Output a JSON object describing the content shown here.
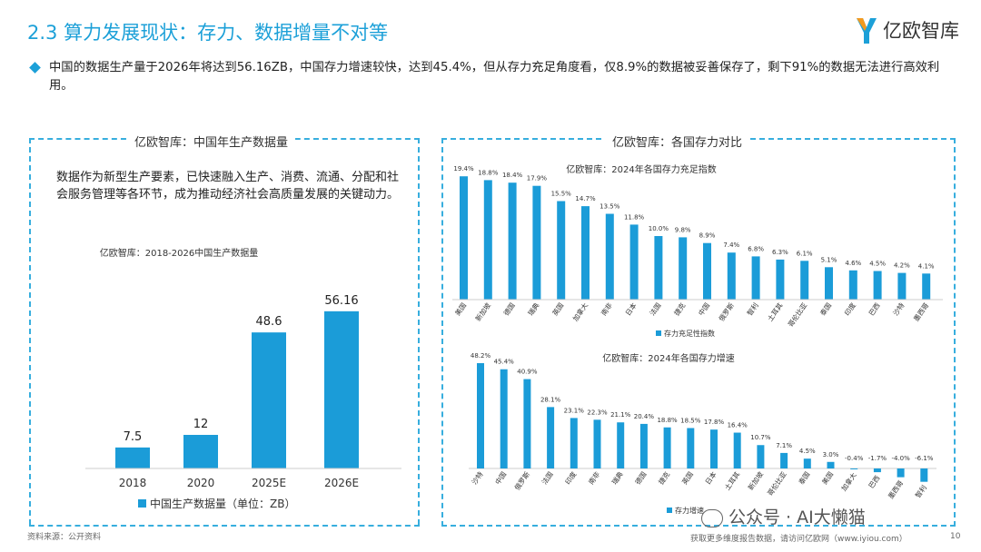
{
  "header": {
    "title": "2.3 算力发展现状：存力、数据增量不对等",
    "logo_text": "亿欧智库"
  },
  "summary": "中国的数据生产量于2026年将达到56.16ZB，中国存力增速较快，达到45.4%，但从存力充足角度看，仅8.9%的数据被妥善保存了，剩下91%的数据无法进行高效利用。",
  "left_panel": {
    "title": "亿欧智库：中国年生产数据量",
    "description": "数据作为新型生产要素，已快速融入生产、消费、流通、分配和社会服务管理等各环节，成为推动经济社会高质量发展的关键动力。"
  },
  "right_panel": {
    "title": "亿欧智库：各国存力对比"
  },
  "colors": {
    "bar": "#1b9cd8",
    "accent": "#1ca0d8",
    "dash": "#37aede"
  },
  "chart_data": [
    {
      "type": "bar",
      "title": "亿欧智库：2018-2026中国生产数据量",
      "categories": [
        "2018",
        "2020",
        "2025E",
        "2026E"
      ],
      "values": [
        7.5,
        12,
        48.6,
        56.16
      ],
      "value_labels": [
        "7.5",
        "12",
        "48.6",
        "56.16"
      ],
      "legend": [
        "中国生产数据量（单位：ZB）"
      ],
      "ylim": [
        0,
        60
      ],
      "grid": false
    },
    {
      "type": "bar",
      "title": "亿欧智库：2024年各国存力充足指数",
      "categories": [
        "美国",
        "新加坡",
        "德国",
        "瑞典",
        "英国",
        "加拿大",
        "南非",
        "日本",
        "法国",
        "捷克",
        "中国",
        "俄罗斯",
        "智利",
        "土耳其",
        "哥伦比亚",
        "泰国",
        "印度",
        "巴西",
        "沙特",
        "墨西哥"
      ],
      "values": [
        19.4,
        18.8,
        18.4,
        17.9,
        15.5,
        14.7,
        13.5,
        11.8,
        10.0,
        9.8,
        8.9,
        7.4,
        6.8,
        6.3,
        6.1,
        5.1,
        4.6,
        4.5,
        4.2,
        4.1
      ],
      "value_labels": [
        "19.4%",
        "18.8%",
        "18.4%",
        "17.9%",
        "15.5%",
        "14.7%",
        "13.5%",
        "11.8%",
        "10.0%",
        "9.8%",
        "8.9%",
        "7.4%",
        "6.8%",
        "6.3%",
        "6.1%",
        "5.1%",
        "4.6%",
        "4.5%",
        "4.2%",
        "4.1%"
      ],
      "legend": [
        "存力充足性指数"
      ],
      "ylim": [
        0,
        20
      ],
      "grid": false
    },
    {
      "type": "bar",
      "title": "亿欧智库：2024年各国存力增速",
      "categories": [
        "沙特",
        "中国",
        "俄罗斯",
        "法国",
        "印度",
        "南非",
        "瑞典",
        "德国",
        "捷克",
        "英国",
        "日本",
        "土耳其",
        "新加坡",
        "哥伦比亚",
        "泰国",
        "美国",
        "加拿大",
        "巴西",
        "墨西哥",
        "智利"
      ],
      "values": [
        48.2,
        45.4,
        40.9,
        28.1,
        23.1,
        22.3,
        21.1,
        20.4,
        18.8,
        18.5,
        17.8,
        16.4,
        10.7,
        7.1,
        4.5,
        3.0,
        -0.4,
        -1.7,
        -4.0,
        -6.1
      ],
      "value_labels": [
        "48.2%",
        "45.4%",
        "40.9%",
        "28.1%",
        "23.1%",
        "22.3%",
        "21.1%",
        "20.4%",
        "18.8%",
        "18.5%",
        "17.8%",
        "16.4%",
        "10.7%",
        "7.1%",
        "4.5%",
        "3.0%",
        "-0.4%",
        "-1.7%",
        "-4.0%",
        "-6.1%"
      ],
      "legend": [
        "存力增速"
      ],
      "ylim": [
        -7,
        50
      ],
      "grid": false
    }
  ],
  "footer": {
    "source": "资料来源：公开资料",
    "promo": "获取更多维度报告数据，请访问亿欧网（www.iyiou.com）",
    "page": "10",
    "watermark": "公众号 · AI大懒猫"
  }
}
